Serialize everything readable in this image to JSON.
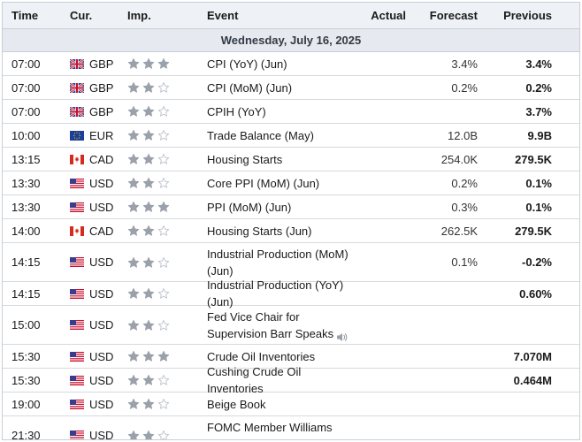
{
  "header": {
    "time": "Time",
    "currency": "Cur.",
    "importance": "Imp.",
    "event": "Event",
    "actual": "Actual",
    "forecast": "Forecast",
    "previous": "Previous"
  },
  "date_label": "Wednesday, July 16, 2025",
  "colors": {
    "star_filled": "#9aa1ab",
    "star_empty": "#bfc4cb",
    "border": "#c9ced6"
  },
  "rows": [
    {
      "time": "07:00",
      "flag": "gb-flag",
      "cur": "GBP",
      "stars": 3,
      "event": "CPI (YoY) (Jun)",
      "speaks": false,
      "actual": "",
      "forecast": "3.4%",
      "previous": "3.4%"
    },
    {
      "time": "07:00",
      "flag": "gb-flag",
      "cur": "GBP",
      "stars": 2,
      "event": "CPI (MoM) (Jun)",
      "speaks": false,
      "actual": "",
      "forecast": "0.2%",
      "previous": "0.2%"
    },
    {
      "time": "07:00",
      "flag": "gb-flag",
      "cur": "GBP",
      "stars": 2,
      "event": "CPIH (YoY)",
      "speaks": false,
      "actual": "",
      "forecast": "",
      "previous": "3.7%"
    },
    {
      "time": "10:00",
      "flag": "eu-flag",
      "cur": "EUR",
      "stars": 2,
      "event": "Trade Balance (May)",
      "speaks": false,
      "actual": "",
      "forecast": "12.0B",
      "previous": "9.9B"
    },
    {
      "time": "13:15",
      "flag": "ca-flag",
      "cur": "CAD",
      "stars": 2,
      "event": "Housing Starts",
      "speaks": false,
      "actual": "",
      "forecast": "254.0K",
      "previous": "279.5K"
    },
    {
      "time": "13:30",
      "flag": "us-flag",
      "cur": "USD",
      "stars": 2,
      "event": "Core PPI (MoM) (Jun)",
      "speaks": false,
      "actual": "",
      "forecast": "0.2%",
      "previous": "0.1%"
    },
    {
      "time": "13:30",
      "flag": "us-flag",
      "cur": "USD",
      "stars": 3,
      "event": "PPI (MoM) (Jun)",
      "speaks": false,
      "actual": "",
      "forecast": "0.3%",
      "previous": "0.1%"
    },
    {
      "time": "14:00",
      "flag": "ca-flag",
      "cur": "CAD",
      "stars": 2,
      "event": "Housing Starts (Jun)",
      "speaks": false,
      "actual": "",
      "forecast": "262.5K",
      "previous": "279.5K"
    },
    {
      "time": "14:15",
      "flag": "us-flag",
      "cur": "USD",
      "stars": 2,
      "event": "Industrial Production (MoM) (Jun)",
      "speaks": false,
      "actual": "",
      "forecast": "0.1%",
      "previous": "-0.2%"
    },
    {
      "time": "14:15",
      "flag": "us-flag",
      "cur": "USD",
      "stars": 2,
      "event": "Industrial Production (YoY) (Jun)",
      "speaks": false,
      "actual": "",
      "forecast": "",
      "previous": "0.60%"
    },
    {
      "time": "15:00",
      "flag": "us-flag",
      "cur": "USD",
      "stars": 2,
      "event": "Fed Vice Chair for Supervision Barr Speaks",
      "speaks": true,
      "actual": "",
      "forecast": "",
      "previous": ""
    },
    {
      "time": "15:30",
      "flag": "us-flag",
      "cur": "USD",
      "stars": 3,
      "event": "Crude Oil Inventories",
      "speaks": false,
      "actual": "",
      "forecast": "",
      "previous": "7.070M"
    },
    {
      "time": "15:30",
      "flag": "us-flag",
      "cur": "USD",
      "stars": 2,
      "event": "Cushing Crude Oil Inventories",
      "speaks": false,
      "actual": "",
      "forecast": "",
      "previous": "0.464M"
    },
    {
      "time": "19:00",
      "flag": "us-flag",
      "cur": "USD",
      "stars": 2,
      "event": "Beige Book",
      "speaks": false,
      "actual": "",
      "forecast": "",
      "previous": ""
    },
    {
      "time": "21:30",
      "flag": "us-flag",
      "cur": "USD",
      "stars": 2,
      "event": "FOMC Member Williams Speaks",
      "speaks": true,
      "actual": "",
      "forecast": "",
      "previous": ""
    }
  ]
}
